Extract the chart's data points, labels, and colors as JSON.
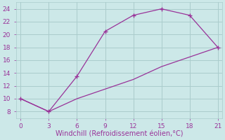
{
  "title": "",
  "xlabel": "Windchill (Refroidissement éolien,°C)",
  "line1_x": [
    0,
    3,
    6,
    9,
    12,
    15,
    18,
    21
  ],
  "line1_y": [
    10,
    8,
    13.5,
    20.5,
    23,
    24,
    23,
    18
  ],
  "line2_x": [
    0,
    3,
    6,
    9,
    12,
    15,
    18,
    21
  ],
  "line2_y": [
    10,
    8,
    10.0,
    11.5,
    13.0,
    15.0,
    16.5,
    18
  ],
  "color": "#993399",
  "bg_color": "#cce8e8",
  "grid_color": "#aacccc",
  "xlim": [
    -0.5,
    21.5
  ],
  "ylim": [
    7,
    25
  ],
  "xticks": [
    0,
    3,
    6,
    9,
    12,
    15,
    18,
    21
  ],
  "yticks": [
    8,
    10,
    12,
    14,
    16,
    18,
    20,
    22,
    24
  ],
  "xlabel_fontsize": 7,
  "tick_fontsize": 6.5
}
